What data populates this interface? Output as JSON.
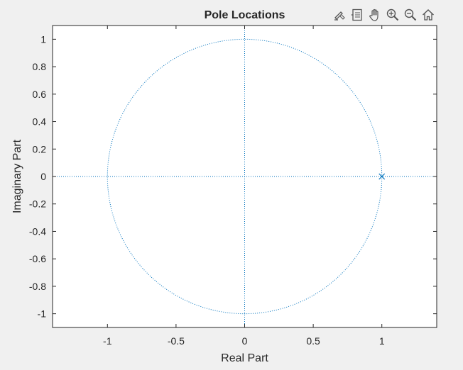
{
  "toolbar": {
    "tools": [
      {
        "name": "brush-icon"
      },
      {
        "name": "data-tips-icon"
      },
      {
        "name": "pan-hand-icon"
      },
      {
        "name": "zoom-in-icon"
      },
      {
        "name": "zoom-out-icon"
      },
      {
        "name": "home-icon"
      }
    ]
  },
  "chart_data": {
    "type": "scatter",
    "title": "Pole Locations",
    "xlabel": "Real Part",
    "ylabel": "Imaginary Part",
    "xlim": [
      -1.4,
      1.4
    ],
    "ylim": [
      -1.1,
      1.1
    ],
    "xticks": [
      -1,
      -0.5,
      0,
      0.5,
      1
    ],
    "xtick_labels": [
      "-1",
      "-0.5",
      "0",
      "0.5",
      "1"
    ],
    "yticks": [
      1,
      0.8,
      0.6,
      0.4,
      0.2,
      0,
      -0.2,
      -0.4,
      -0.6,
      -0.8,
      -1
    ],
    "ytick_labels": [
      "1",
      "0.8",
      "0.6",
      "0.4",
      "0.2",
      "0",
      "-0.2",
      "-0.4",
      "-0.6",
      "-0.8",
      "-1"
    ],
    "grid": false,
    "unit_circle": {
      "radius": 1,
      "style": "dotted"
    },
    "axis_lines": {
      "style": "dotted"
    },
    "poles": [
      {
        "re": 1,
        "im": 0,
        "marker": "x"
      }
    ],
    "colors": {
      "marker": "#0072bd",
      "background": "#f0f0f0",
      "axes": "#ffffff",
      "frame": "#262626"
    }
  }
}
